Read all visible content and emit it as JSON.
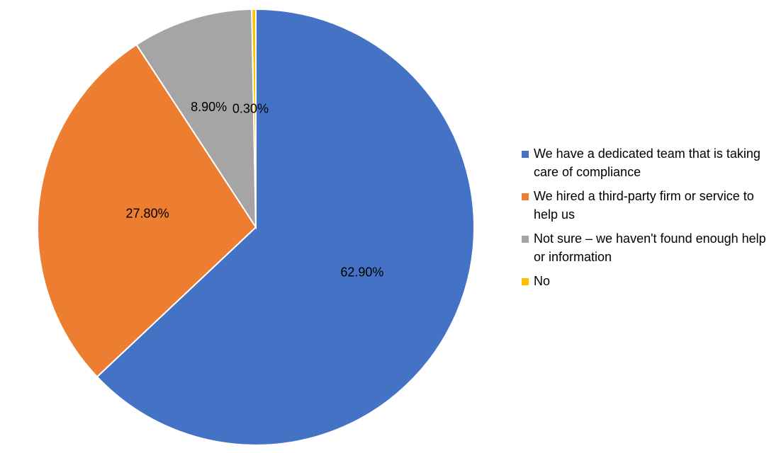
{
  "chart_data": {
    "type": "pie",
    "categories": [
      "We have a dedicated team that is taking care of compliance",
      "We hired a third-party firm or service to help us",
      "Not sure – we haven't found enough help or information",
      "No"
    ],
    "values": [
      62.9,
      27.8,
      8.9,
      0.3
    ],
    "data_labels": [
      "62.90%",
      "27.80%",
      "8.90%",
      "0.30%"
    ],
    "colors": [
      "#4472C4",
      "#ED7D31",
      "#A5A5A5",
      "#FFC000"
    ],
    "legend_placement": "right",
    "start_angle": "top, clockwise"
  }
}
